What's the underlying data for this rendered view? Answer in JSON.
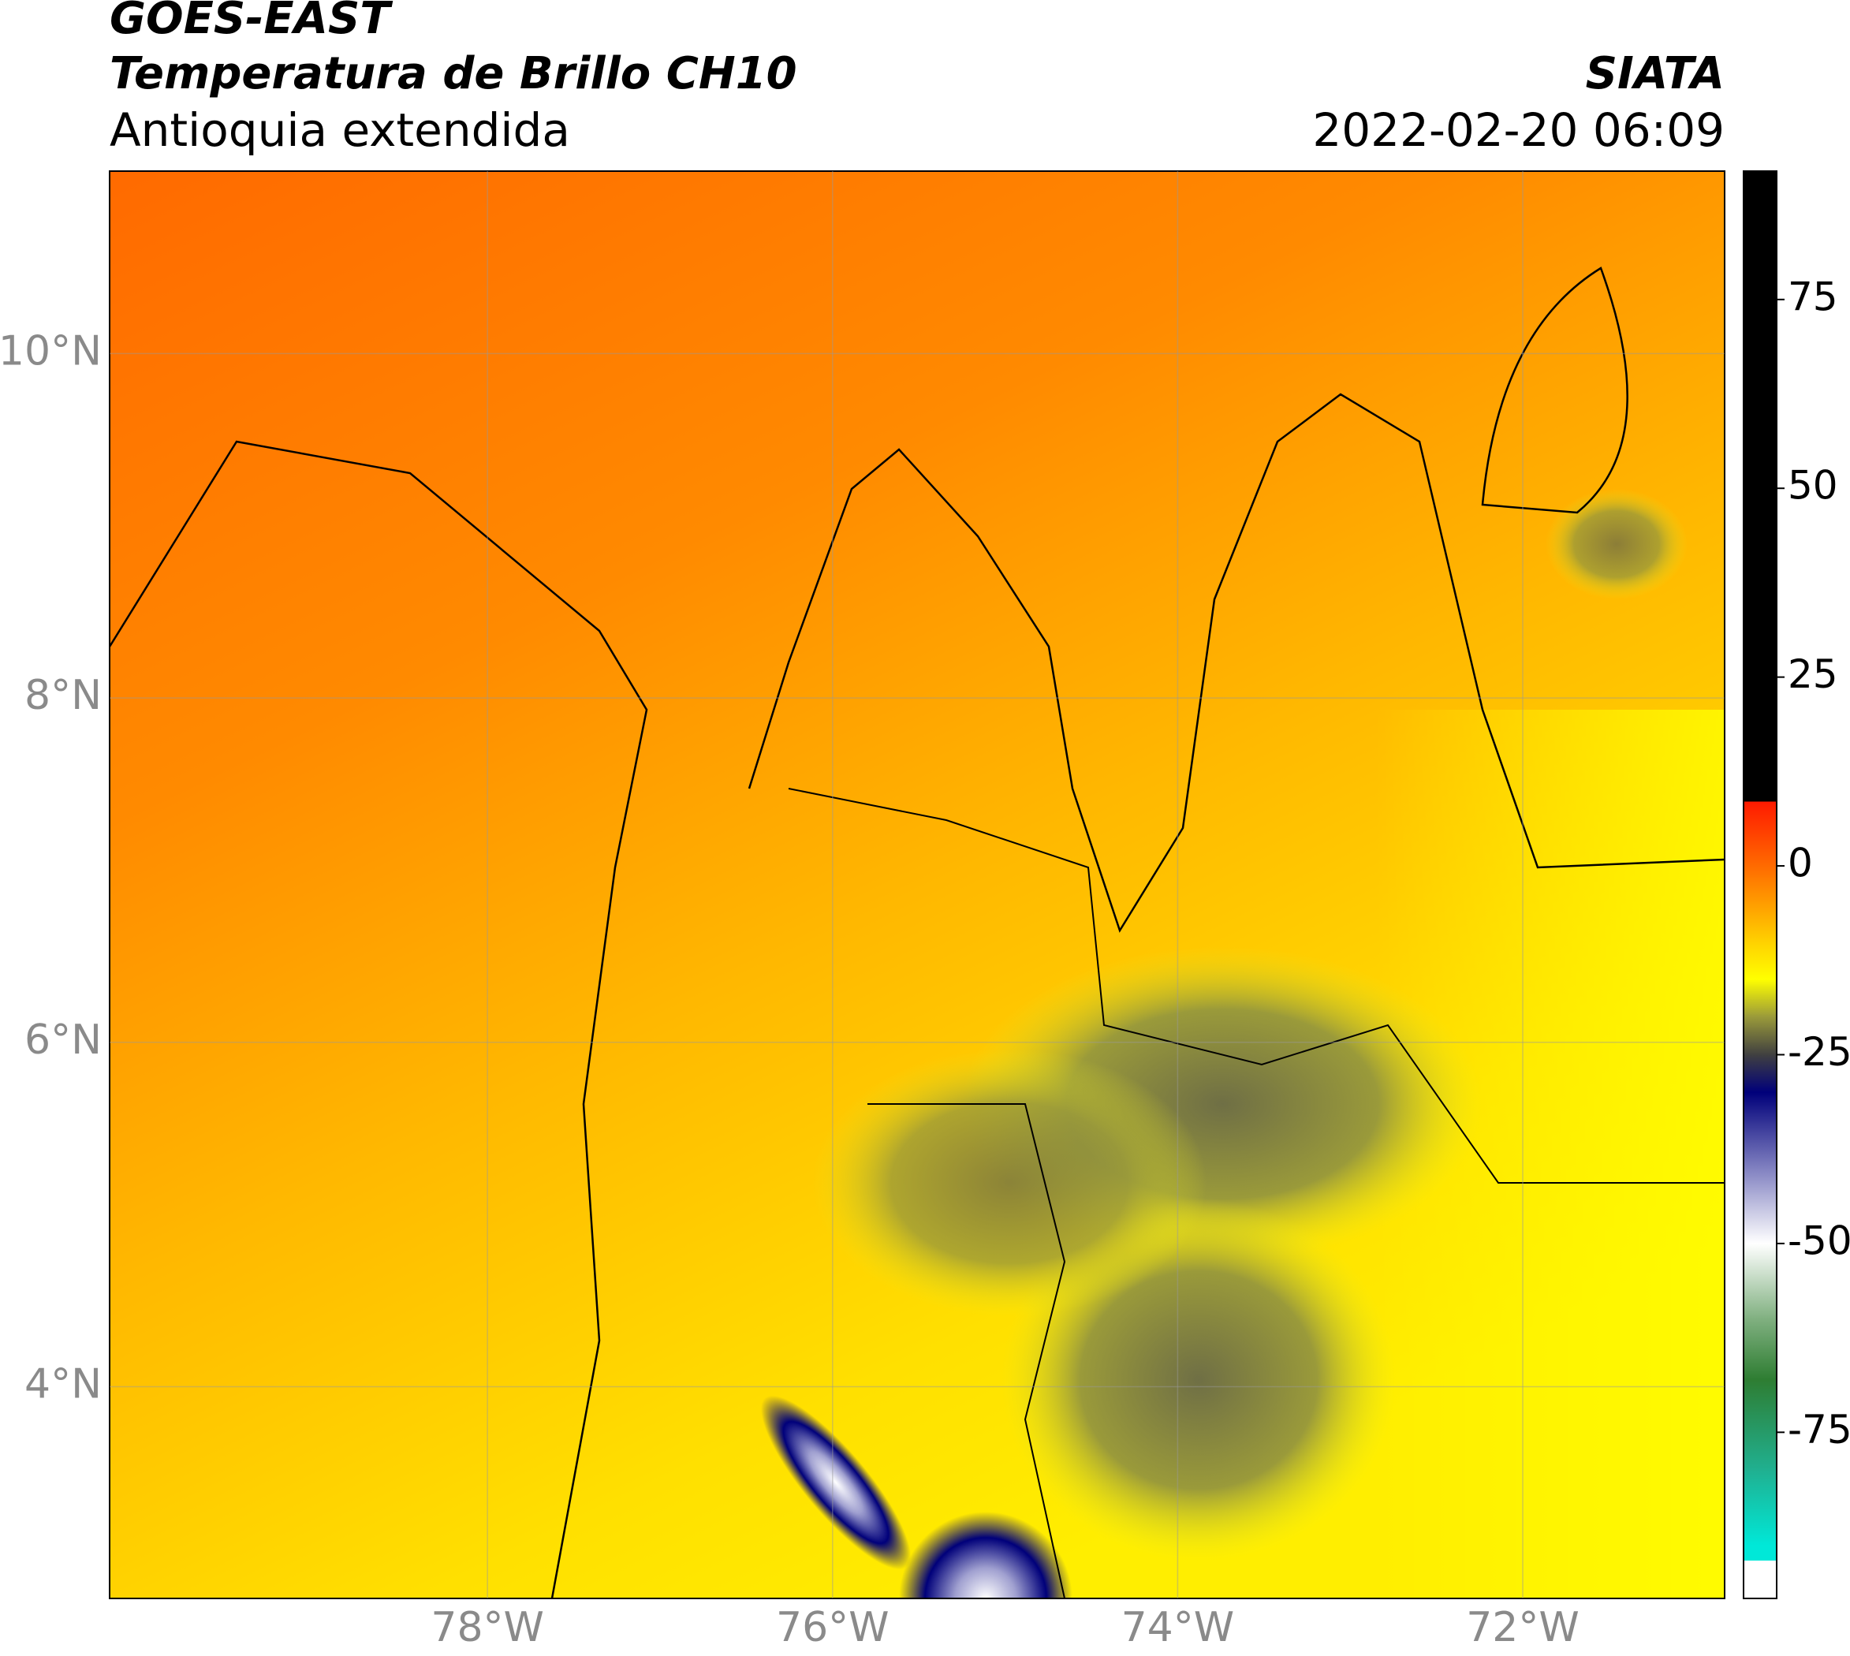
{
  "map": {
    "title": "GOES-EAST",
    "subtitle": "Temperatura de Brillo CH10",
    "region": "Antioquia extendida",
    "source": "SIATA",
    "datetime": "2022-02-20 06:09",
    "xlim": [
      -80.19,
      -70.83
    ],
    "ylim": [
      2.77,
      11.06
    ],
    "xticks": [
      {
        "value": -78,
        "label": "78°W"
      },
      {
        "value": -76,
        "label": "76°W"
      },
      {
        "value": -74,
        "label": "74°W"
      },
      {
        "value": -72,
        "label": "72°W"
      }
    ],
    "yticks": [
      {
        "value": 4,
        "label": "4°N"
      },
      {
        "value": 6,
        "label": "6°N"
      },
      {
        "value": 8,
        "label": "8°N"
      },
      {
        "value": 10,
        "label": "10°N"
      }
    ],
    "grid": true,
    "colorbar": {
      "lim": [
        -97,
        92
      ],
      "ticks": [
        -75,
        -50,
        -25,
        0,
        25,
        50,
        75
      ],
      "stops": [
        {
          "value": 92,
          "color": "#000000"
        },
        {
          "value": 8.5,
          "color": "#000000"
        },
        {
          "value": 8.5,
          "color": "#ff1a00"
        },
        {
          "value": 0,
          "color": "#ff6a00"
        },
        {
          "value": -10,
          "color": "#ffd000"
        },
        {
          "value": -15,
          "color": "#ffff00"
        },
        {
          "value": -20,
          "color": "#9a9a3a"
        },
        {
          "value": -25,
          "color": "#404040"
        },
        {
          "value": -30,
          "color": "#00007a"
        },
        {
          "value": -40,
          "color": "#8080c0"
        },
        {
          "value": -50,
          "color": "#ffffff"
        },
        {
          "value": -60,
          "color": "#80b080"
        },
        {
          "value": -68,
          "color": "#2e7d32"
        },
        {
          "value": -80,
          "color": "#20b090"
        },
        {
          "value": -90,
          "color": "#00e8d8"
        },
        {
          "value": -92,
          "color": "#00e8d8"
        },
        {
          "value": -92,
          "color": "#ffffff"
        },
        {
          "value": -97,
          "color": "#ffffff"
        }
      ]
    }
  }
}
